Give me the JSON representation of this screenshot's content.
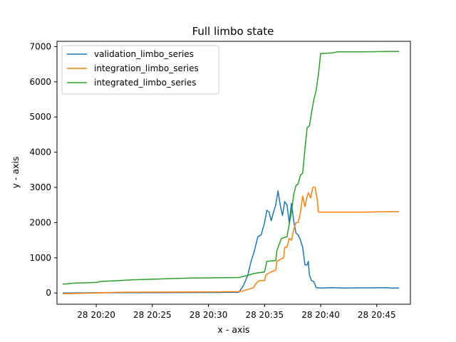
{
  "chart_data": {
    "type": "line",
    "title": "Full limbo state",
    "xlabel": "x - axis",
    "ylabel": "y - axis",
    "xlim": [
      16.5,
      48
    ],
    "ylim": [
      -320,
      7150
    ],
    "grid": false,
    "legend_position": "top-left",
    "x_ticks": [
      {
        "value": 20,
        "label": "28 20:20"
      },
      {
        "value": 25,
        "label": "28 20:25"
      },
      {
        "value": 30,
        "label": "28 20:30"
      },
      {
        "value": 35,
        "label": "28 20:35"
      },
      {
        "value": 40,
        "label": "28 20:40"
      },
      {
        "value": 45,
        "label": "28 20:45"
      }
    ],
    "y_ticks": [
      0,
      1000,
      2000,
      3000,
      4000,
      5000,
      6000,
      7000
    ],
    "series": [
      {
        "name": "validation_limbo_series",
        "color": "#1f77b4",
        "points": [
          [
            17,
            0
          ],
          [
            20,
            5
          ],
          [
            25,
            10
          ],
          [
            30,
            15
          ],
          [
            32.7,
            20
          ],
          [
            33.1,
            200
          ],
          [
            33.5,
            500
          ],
          [
            33.8,
            900
          ],
          [
            34.1,
            1200
          ],
          [
            34.4,
            1600
          ],
          [
            34.7,
            1650
          ],
          [
            35,
            2000
          ],
          [
            35.2,
            2350
          ],
          [
            35.4,
            2300
          ],
          [
            35.6,
            2050
          ],
          [
            35.8,
            2300
          ],
          [
            36,
            2500
          ],
          [
            36.2,
            2900
          ],
          [
            36.4,
            2500
          ],
          [
            36.6,
            2200
          ],
          [
            36.8,
            2600
          ],
          [
            37,
            2500
          ],
          [
            37.2,
            2000
          ],
          [
            37.4,
            2550
          ],
          [
            37.6,
            2050
          ],
          [
            37.8,
            1700
          ],
          [
            38,
            1650
          ],
          [
            38.2,
            1500
          ],
          [
            38.4,
            1300
          ],
          [
            38.6,
            800
          ],
          [
            38.8,
            800
          ],
          [
            38.9,
            900
          ],
          [
            39,
            500
          ],
          [
            39.2,
            350
          ],
          [
            39.4,
            320
          ],
          [
            39.6,
            150
          ],
          [
            40,
            140
          ],
          [
            41,
            150
          ],
          [
            42,
            140
          ],
          [
            44,
            145
          ],
          [
            46,
            150
          ],
          [
            46.2,
            140
          ],
          [
            47,
            140
          ]
        ]
      },
      {
        "name": "integration_limbo_series",
        "color": "#ff7f0e",
        "points": [
          [
            17,
            -20
          ],
          [
            20,
            0
          ],
          [
            22,
            20
          ],
          [
            25,
            25
          ],
          [
            30,
            30
          ],
          [
            32.7,
            40
          ],
          [
            33,
            50
          ],
          [
            33.5,
            100
          ],
          [
            34,
            150
          ],
          [
            34.2,
            250
          ],
          [
            34.5,
            350
          ],
          [
            35,
            350
          ],
          [
            35.1,
            500
          ],
          [
            35.3,
            550
          ],
          [
            35.6,
            600
          ],
          [
            36,
            650
          ],
          [
            36.1,
            900
          ],
          [
            36.4,
            950
          ],
          [
            36.7,
            1000
          ],
          [
            36.8,
            1300
          ],
          [
            37,
            1300
          ],
          [
            37.2,
            1550
          ],
          [
            37.4,
            1500
          ],
          [
            37.6,
            1800
          ],
          [
            37.8,
            2000
          ],
          [
            38,
            2000
          ],
          [
            38.2,
            2300
          ],
          [
            38.4,
            2750
          ],
          [
            38.6,
            2450
          ],
          [
            38.8,
            2750
          ],
          [
            38.9,
            2850
          ],
          [
            39.1,
            2700
          ],
          [
            39.3,
            3000
          ],
          [
            39.5,
            3000
          ],
          [
            39.7,
            2650
          ],
          [
            39.8,
            2300
          ],
          [
            40,
            2300
          ],
          [
            41,
            2300
          ],
          [
            42,
            2300
          ],
          [
            44,
            2300
          ],
          [
            46,
            2310
          ],
          [
            47,
            2310
          ]
        ]
      },
      {
        "name": "integrated_limbo_series",
        "color": "#2ca02c",
        "points": [
          [
            17,
            250
          ],
          [
            17.5,
            260
          ],
          [
            18,
            280
          ],
          [
            20,
            300
          ],
          [
            20.5,
            330
          ],
          [
            22,
            350
          ],
          [
            23,
            370
          ],
          [
            25,
            390
          ],
          [
            26,
            400
          ],
          [
            28,
            420
          ],
          [
            30,
            430
          ],
          [
            32.7,
            440
          ],
          [
            33.5,
            500
          ],
          [
            34,
            550
          ],
          [
            35,
            600
          ],
          [
            35.2,
            900
          ],
          [
            36,
            920
          ],
          [
            36.1,
            1200
          ],
          [
            36.5,
            1550
          ],
          [
            37,
            1600
          ],
          [
            37.4,
            2300
          ],
          [
            37.6,
            2800
          ],
          [
            37.8,
            3050
          ],
          [
            38,
            3100
          ],
          [
            38.2,
            3350
          ],
          [
            38.4,
            3400
          ],
          [
            38.6,
            4100
          ],
          [
            38.8,
            4700
          ],
          [
            39,
            4750
          ],
          [
            39.2,
            5150
          ],
          [
            39.4,
            5500
          ],
          [
            39.6,
            5750
          ],
          [
            39.8,
            6200
          ],
          [
            40,
            6800
          ],
          [
            41,
            6820
          ],
          [
            41.5,
            6850
          ],
          [
            44,
            6850
          ],
          [
            46,
            6860
          ],
          [
            47,
            6860
          ]
        ]
      }
    ]
  }
}
